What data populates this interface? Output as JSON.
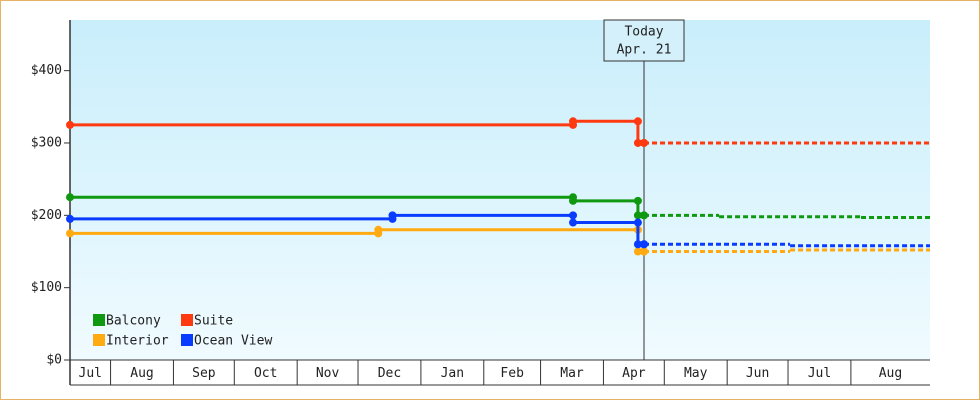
{
  "chart_data": {
    "type": "step-line",
    "xlim": [
      -20,
      404
    ],
    "xticks": [
      {
        "value": -20,
        "label": "Jul"
      },
      {
        "value": 0,
        "label": "Aug"
      },
      {
        "value": 31,
        "label": "Sep"
      },
      {
        "value": 61,
        "label": "Oct"
      },
      {
        "value": 92,
        "label": "Nov"
      },
      {
        "value": 122,
        "label": "Dec"
      },
      {
        "value": 153,
        "label": "Jan"
      },
      {
        "value": 184,
        "label": "Feb"
      },
      {
        "value": 212,
        "label": "Mar"
      },
      {
        "value": 243,
        "label": "Apr"
      },
      {
        "value": 273,
        "label": "May"
      },
      {
        "value": 304,
        "label": "Jun"
      },
      {
        "value": 334,
        "label": "Jul"
      },
      {
        "value": 365,
        "label": "Aug"
      }
    ],
    "ylim": [
      0,
      470
    ],
    "yticks": [
      {
        "value": 0,
        "label": "$0"
      },
      {
        "value": 100,
        "label": "$100"
      },
      {
        "value": 200,
        "label": "$200"
      },
      {
        "value": 300,
        "label": "$300"
      },
      {
        "value": 400,
        "label": "$400"
      }
    ],
    "annotation": {
      "x": 263,
      "lines": [
        "Today",
        "Apr. 21"
      ]
    },
    "legend": "bottom-left",
    "series": [
      {
        "name": "Balcony",
        "color": "#109910",
        "x": [
          -20,
          228,
          260,
          263
        ],
        "values": [
          225,
          220,
          200,
          200
        ],
        "forecast_x": [
          263,
          300,
          370
        ],
        "forecast_values": [
          200,
          198,
          197
        ]
      },
      {
        "name": "Suite",
        "color": "#ff3a10",
        "x": [
          -20,
          228,
          260,
          263
        ],
        "values": [
          325,
          330,
          300,
          300
        ],
        "forecast_x": [
          263
        ],
        "forecast_values": [
          300
        ]
      },
      {
        "name": "Interior",
        "color": "#ffaa10",
        "x": [
          -20,
          132,
          260,
          263
        ],
        "values": [
          175,
          180,
          150,
          150
        ],
        "forecast_x": [
          263,
          335
        ],
        "forecast_values": [
          150,
          152
        ]
      },
      {
        "name": "Ocean View",
        "color": "#0a3cff",
        "x": [
          -20,
          139,
          228,
          260,
          263
        ],
        "values": [
          195,
          200,
          190,
          160,
          160
        ],
        "forecast_x": [
          263,
          335
        ],
        "forecast_values": [
          160,
          158
        ]
      }
    ]
  }
}
